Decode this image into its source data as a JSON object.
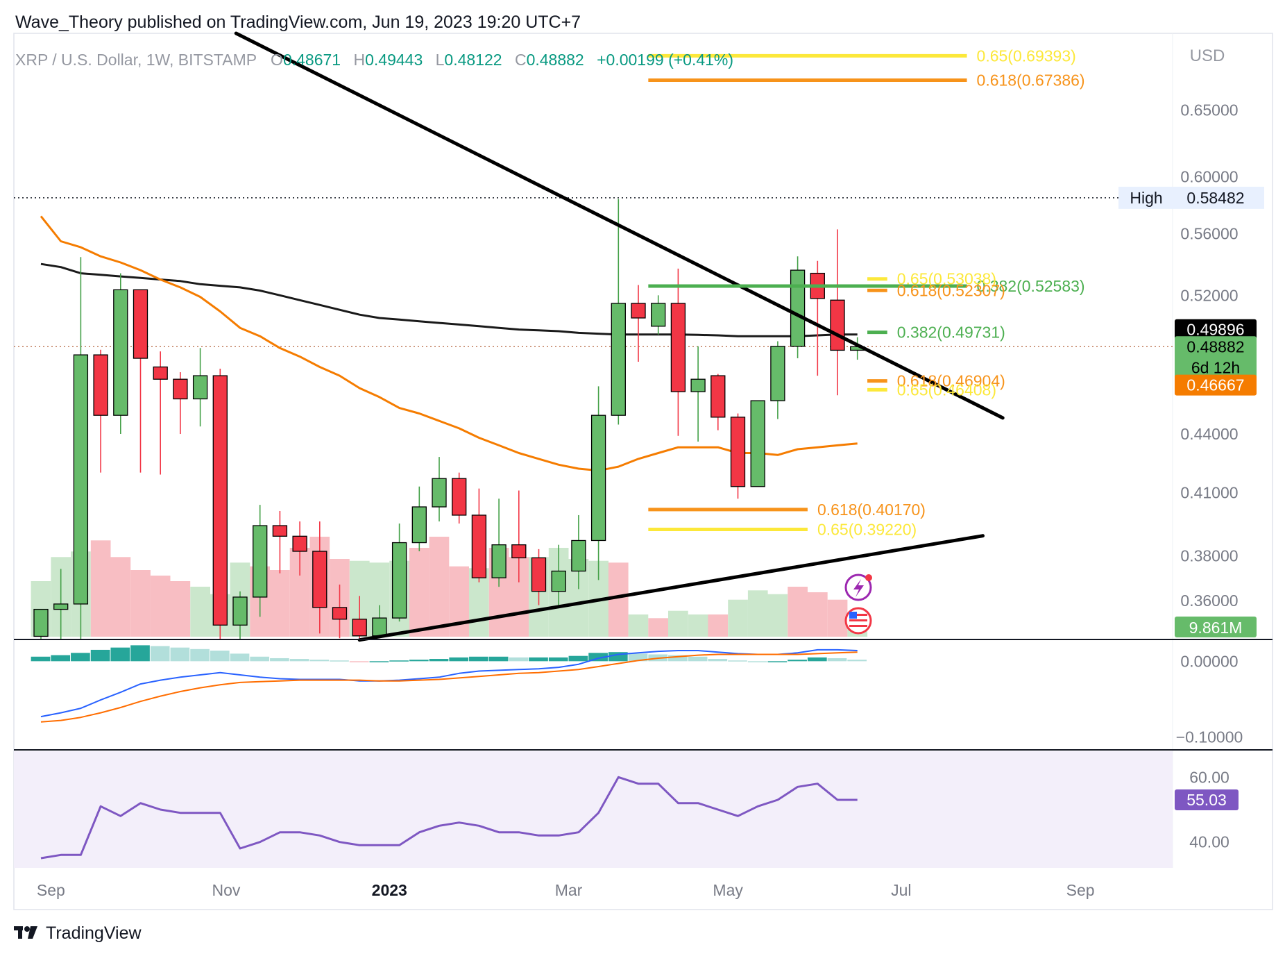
{
  "header": {
    "publisher_line": "Wave_Theory published on TradingView.com, Jun 19, 2023 19:20 UTC+7",
    "symbol": "XRP / U.S. Dollar, 1W, BITSTAMP",
    "o_label": "O",
    "o_value": "0.48671",
    "h_label": "H",
    "h_value": "0.49443",
    "l_label": "L",
    "l_value": "0.48122",
    "c_label": "C",
    "c_value": "0.48882",
    "change": "+0.00199 (+0.41%)"
  },
  "footer": {
    "brand": "TradingView",
    "logo_icon": "tradingview-logo-icon"
  },
  "icons": [
    "lightning-icon",
    "us-flag-icon"
  ],
  "colors": {
    "up": "#66bb6a",
    "down": "#f23645",
    "ema_orange": "#f57c00",
    "sma_black": "#1a1a1a",
    "fib_yellow": "#fce83a",
    "fib_orange": "#f7931a",
    "fib_green": "#4caf50",
    "rsi": "#7e57c2",
    "macd": "#2962ff",
    "signal": "#ff6d00",
    "hist_up_strong": "#26a69a",
    "hist_up_weak": "#b2dfdb"
  },
  "chart_data": {
    "type": "candlestick",
    "price_axis": {
      "currency": "USD",
      "scale": "log",
      "range": [
        0.3435,
        0.713
      ],
      "ticks": [
        "0.65000",
        "0.60000",
        "0.56000",
        "0.52000",
        "0.44000",
        "0.41000",
        "0.38000",
        "0.36000"
      ],
      "tick_values": [
        0.65,
        0.6,
        0.56,
        0.52,
        0.44,
        0.41,
        0.38,
        0.36
      ]
    },
    "x_axis": {
      "ticks": [
        "Sep",
        "Nov",
        "2023",
        "Mar",
        "May",
        "Jul",
        "Sep"
      ],
      "tick_positions_week": [
        0.5,
        9.3,
        17.5,
        26.5,
        34.5,
        43.2,
        52.2
      ]
    },
    "candles": [
      {
        "o": 0.3448,
        "h": 0.3545,
        "l": 0.3435,
        "c": 0.3562
      },
      {
        "o": 0.3562,
        "h": 0.374,
        "l": 0.3435,
        "c": 0.3585
      },
      {
        "o": 0.3585,
        "h": 0.5445,
        "l": 0.3435,
        "c": 0.484
      },
      {
        "o": 0.484,
        "h": 0.487,
        "l": 0.42,
        "c": 0.45
      },
      {
        "o": 0.45,
        "h": 0.534,
        "l": 0.44,
        "c": 0.5235
      },
      {
        "o": 0.5235,
        "h": 0.522,
        "l": 0.42,
        "c": 0.482
      },
      {
        "o": 0.477,
        "h": 0.486,
        "l": 0.419,
        "c": 0.47
      },
      {
        "o": 0.47,
        "h": 0.474,
        "l": 0.44,
        "c": 0.459
      },
      {
        "o": 0.459,
        "h": 0.488,
        "l": 0.444,
        "c": 0.472
      },
      {
        "o": 0.472,
        "h": 0.476,
        "l": 0.3435,
        "c": 0.3495
      },
      {
        "o": 0.3495,
        "h": 0.364,
        "l": 0.3435,
        "c": 0.3615
      },
      {
        "o": 0.3615,
        "h": 0.404,
        "l": 0.353,
        "c": 0.394
      },
      {
        "o": 0.394,
        "h": 0.401,
        "l": 0.372,
        "c": 0.389
      },
      {
        "o": 0.389,
        "h": 0.396,
        "l": 0.371,
        "c": 0.382
      },
      {
        "o": 0.382,
        "h": 0.396,
        "l": 0.346,
        "c": 0.357
      },
      {
        "o": 0.357,
        "h": 0.367,
        "l": 0.344,
        "c": 0.352
      },
      {
        "o": 0.352,
        "h": 0.362,
        "l": 0.344,
        "c": 0.345
      },
      {
        "o": 0.345,
        "h": 0.358,
        "l": 0.344,
        "c": 0.3525
      },
      {
        "o": 0.3525,
        "h": 0.395,
        "l": 0.351,
        "c": 0.386
      },
      {
        "o": 0.386,
        "h": 0.413,
        "l": 0.382,
        "c": 0.403
      },
      {
        "o": 0.403,
        "h": 0.428,
        "l": 0.396,
        "c": 0.417
      },
      {
        "o": 0.417,
        "h": 0.42,
        "l": 0.395,
        "c": 0.399
      },
      {
        "o": 0.399,
        "h": 0.412,
        "l": 0.368,
        "c": 0.37
      },
      {
        "o": 0.37,
        "h": 0.407,
        "l": 0.366,
        "c": 0.385
      },
      {
        "o": 0.385,
        "h": 0.411,
        "l": 0.368,
        "c": 0.379
      },
      {
        "o": 0.379,
        "h": 0.383,
        "l": 0.358,
        "c": 0.364
      },
      {
        "o": 0.364,
        "h": 0.385,
        "l": 0.357,
        "c": 0.373
      },
      {
        "o": 0.373,
        "h": 0.399,
        "l": 0.365,
        "c": 0.387
      },
      {
        "o": 0.387,
        "h": 0.466,
        "l": 0.369,
        "c": 0.45
      },
      {
        "o": 0.45,
        "h": 0.584,
        "l": 0.445,
        "c": 0.515
      },
      {
        "o": 0.515,
        "h": 0.5265,
        "l": 0.48,
        "c": 0.506
      },
      {
        "o": 0.501,
        "h": 0.52,
        "l": 0.496,
        "c": 0.515
      },
      {
        "o": 0.515,
        "h": 0.537,
        "l": 0.439,
        "c": 0.463
      },
      {
        "o": 0.463,
        "h": 0.489,
        "l": 0.436,
        "c": 0.47
      },
      {
        "o": 0.472,
        "h": 0.473,
        "l": 0.442,
        "c": 0.449
      },
      {
        "o": 0.449,
        "h": 0.451,
        "l": 0.407,
        "c": 0.413
      },
      {
        "o": 0.413,
        "h": 0.458,
        "l": 0.414,
        "c": 0.458
      },
      {
        "o": 0.458,
        "h": 0.492,
        "l": 0.448,
        "c": 0.489
      },
      {
        "o": 0.489,
        "h": 0.545,
        "l": 0.482,
        "c": 0.536
      },
      {
        "o": 0.534,
        "h": 0.542,
        "l": 0.472,
        "c": 0.518
      },
      {
        "o": 0.517,
        "h": 0.563,
        "l": 0.461,
        "c": 0.4867
      },
      {
        "o": 0.4867,
        "h": 0.4944,
        "l": 0.4812,
        "c": 0.4888
      }
    ],
    "ema_orange": [
      0.572,
      0.555,
      0.551,
      0.545,
      0.541,
      0.536,
      0.53,
      0.525,
      0.519,
      0.51,
      0.5,
      0.495,
      0.488,
      0.483,
      0.477,
      0.472,
      0.465,
      0.46,
      0.454,
      0.451,
      0.447,
      0.443,
      0.438,
      0.434,
      0.43,
      0.427,
      0.424,
      0.422,
      0.421,
      0.423,
      0.427,
      0.43,
      0.433,
      0.433,
      0.433,
      0.43,
      0.43,
      0.429,
      0.432,
      0.433,
      0.434,
      0.435
    ],
    "sma_black": [
      0.54,
      0.538,
      0.534,
      0.533,
      0.532,
      0.531,
      0.53,
      0.529,
      0.527,
      0.526,
      0.525,
      0.523,
      0.52,
      0.517,
      0.514,
      0.511,
      0.508,
      0.506,
      0.505,
      0.504,
      0.503,
      0.502,
      0.501,
      0.5,
      0.499,
      0.4985,
      0.498,
      0.497,
      0.4965,
      0.496,
      0.496,
      0.496,
      0.496,
      0.4958,
      0.4955,
      0.495,
      0.495,
      0.495,
      0.495,
      0.4955,
      0.496,
      0.496
    ],
    "trendlines": [
      {
        "name": "descending-trendline",
        "from": {
          "week": 9.8,
          "price": 0.713
        },
        "to": {
          "week": 48.3,
          "price": 0.4486
        }
      },
      {
        "name": "ascending-trendline",
        "from": {
          "week": 16.0,
          "price": 0.3433
        },
        "to": {
          "week": 47.3,
          "price": 0.3892
        }
      }
    ],
    "fib_levels": [
      {
        "label": "0.65(0.69393)",
        "price": 0.69393,
        "color": "#fce83a",
        "x0_week": 30.5,
        "x1_week": 46.5
      },
      {
        "label": "0.618(0.67386)",
        "price": 0.67386,
        "color": "#f7931a",
        "x0_week": 30.5,
        "x1_week": 46.5
      },
      {
        "label": "0.382(0.52583)",
        "price": 0.52583,
        "color": "#4caf50",
        "x0_week": 30.5,
        "x1_week": 46.5
      },
      {
        "label": "0.65(0.53038)",
        "price": 0.53038,
        "color": "#fce83a",
        "x0_week": 41.5,
        "x1_week": 42.5
      },
      {
        "label": "0.618(0.52307)",
        "price": 0.52307,
        "color": "#f7931a",
        "x0_week": 41.5,
        "x1_week": 42.5
      },
      {
        "label": "0.382(0.49731)",
        "price": 0.49731,
        "color": "#4caf50",
        "x0_week": 41.5,
        "x1_week": 42.5
      },
      {
        "label": "0.618(0.46904)",
        "price": 0.46904,
        "color": "#f7931a",
        "x0_week": 41.5,
        "x1_week": 42.5
      },
      {
        "label": "0.65(0.46408)",
        "price": 0.46408,
        "color": "#fce83a",
        "x0_week": 41.5,
        "x1_week": 42.5
      },
      {
        "label": "0.618(0.40170)",
        "price": 0.4017,
        "color": "#f7931a",
        "x0_week": 30.5,
        "x1_week": 38.5
      },
      {
        "label": "0.65(0.39220)",
        "price": 0.3922,
        "color": "#fce83a",
        "x0_week": 30.5,
        "x1_week": 38.5
      }
    ],
    "high_marker": {
      "label": "High",
      "value_label": "0.58482",
      "price": 0.58482
    },
    "price_labels": [
      {
        "text": "0.49896",
        "price": 0.49896,
        "bg": "#000000",
        "fg": "#ffffff"
      },
      {
        "text": "0.48882",
        "price": 0.48882,
        "bg": "#66bb6a",
        "fg": "#000000",
        "sub": "6d 12h"
      },
      {
        "text": "0.46667",
        "price": 0.46667,
        "bg": "#f57c00",
        "fg": "#ffffff"
      }
    ],
    "last_price": 0.48882,
    "volume": {
      "label": "9.861M",
      "values": [
        30,
        43,
        46,
        52,
        43,
        36,
        33,
        30,
        27,
        23,
        40,
        38,
        36,
        48,
        54,
        42,
        41,
        40,
        41,
        48,
        54,
        38,
        37,
        48,
        43,
        43,
        48,
        42,
        41,
        40,
        12,
        10,
        14,
        12,
        12,
        20,
        25,
        23,
        27,
        24,
        20,
        10
      ],
      "colors": [
        "g",
        "g",
        "g",
        "r",
        "r",
        "r",
        "r",
        "r",
        "g",
        "g",
        "g",
        "r",
        "r",
        "r",
        "r",
        "r",
        "g",
        "g",
        "g",
        "r",
        "r",
        "r",
        "g",
        "r",
        "r",
        "g",
        "g",
        "g",
        "g",
        "r",
        "g",
        "r",
        "g",
        "g",
        "r",
        "g",
        "g",
        "g",
        "r",
        "r",
        "r",
        "g"
      ]
    },
    "macd": {
      "ticks": [
        "0.00000",
        "−0.10000"
      ],
      "tick_values": [
        0.0,
        -0.1
      ],
      "range": [
        -0.115,
        0.025
      ],
      "macd_line": [
        -0.073,
        -0.068,
        -0.062,
        -0.051,
        -0.041,
        -0.03,
        -0.025,
        -0.021,
        -0.018,
        -0.015,
        -0.018,
        -0.021,
        -0.023,
        -0.024,
        -0.024,
        -0.024,
        -0.026,
        -0.026,
        -0.025,
        -0.023,
        -0.021,
        -0.016,
        -0.013,
        -0.012,
        -0.011,
        -0.01,
        -0.008,
        -0.004,
        0.004,
        0.009,
        0.011,
        0.013,
        0.014,
        0.014,
        0.012,
        0.01,
        0.009,
        0.009,
        0.011,
        0.015,
        0.015,
        0.014
      ],
      "signal_line": [
        -0.08,
        -0.078,
        -0.074,
        -0.068,
        -0.061,
        -0.053,
        -0.046,
        -0.04,
        -0.035,
        -0.031,
        -0.028,
        -0.027,
        -0.026,
        -0.025,
        -0.025,
        -0.025,
        -0.025,
        -0.026,
        -0.026,
        -0.025,
        -0.024,
        -0.022,
        -0.02,
        -0.018,
        -0.016,
        -0.015,
        -0.013,
        -0.011,
        -0.007,
        -0.003,
        0.001,
        0.004,
        0.006,
        0.008,
        0.009,
        0.009,
        0.009,
        0.009,
        0.009,
        0.01,
        0.011,
        0.012
      ],
      "histogram": [
        0.006,
        0.008,
        0.011,
        0.015,
        0.018,
        0.021,
        0.02,
        0.018,
        0.016,
        0.014,
        0.01,
        0.006,
        0.004,
        0.003,
        0.002,
        0.001,
        -0.001,
        0.0,
        0.001,
        0.002,
        0.003,
        0.005,
        0.006,
        0.006,
        0.005,
        0.005,
        0.005,
        0.007,
        0.011,
        0.012,
        0.01,
        0.009,
        0.008,
        0.006,
        0.003,
        0.001,
        0.0,
        0.0,
        0.002,
        0.005,
        0.004,
        0.002
      ]
    },
    "rsi": {
      "label": "55.03",
      "ticks": [
        "60.00",
        "40.00"
      ],
      "tick_values": [
        60,
        40
      ],
      "range": [
        32,
        68
      ],
      "values": [
        35,
        36,
        36,
        51,
        48,
        52,
        50,
        49,
        49,
        49,
        38,
        40,
        43,
        43,
        42,
        40,
        39,
        39,
        39,
        43,
        45,
        46,
        45,
        43,
        43,
        42,
        42,
        43,
        49,
        60,
        58,
        58,
        52,
        52,
        50,
        48,
        51,
        53,
        57,
        58,
        53,
        53
      ]
    }
  }
}
